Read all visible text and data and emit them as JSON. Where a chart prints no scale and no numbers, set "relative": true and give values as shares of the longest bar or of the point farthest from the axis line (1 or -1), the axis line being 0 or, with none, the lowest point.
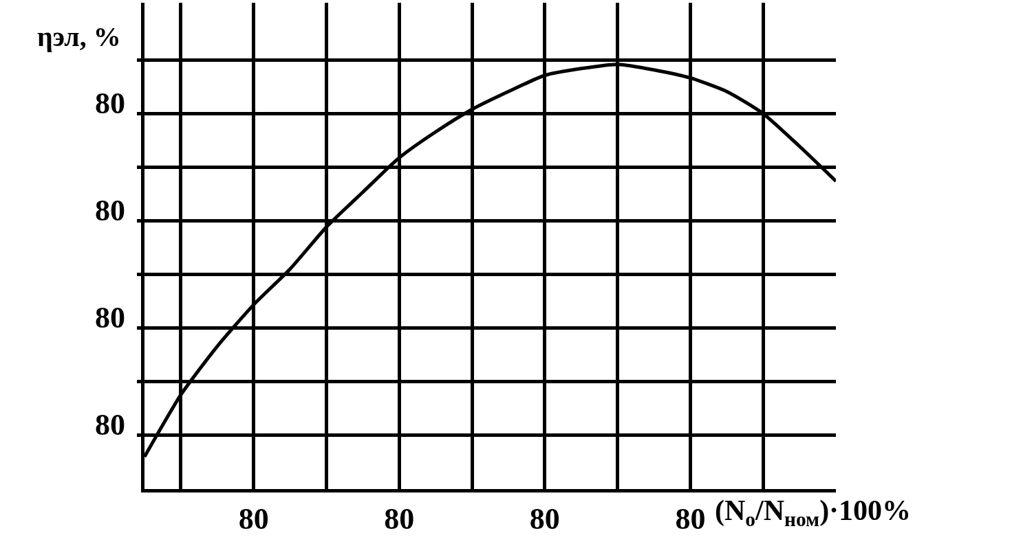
{
  "chart_data": {
    "type": "line",
    "relative": true,
    "xlabel": "(N$_{о}$/N$_{ном}$)·100%",
    "ylabel": "ηэл, %",
    "categories": [
      null,
      null,
      null,
      "80",
      null,
      null,
      null,
      "80",
      null,
      null,
      null,
      "80",
      null,
      null,
      null,
      "80",
      null,
      null,
      null,
      null
    ],
    "series": [
      {
        "color": "#000000",
        "values": [
          0.076,
          0.222,
          0.336,
          0.434,
          0.518,
          0.617,
          0.699,
          0.78,
          0.841,
          0.894,
          0.936,
          0.974,
          0.99,
          1,
          0.987,
          0.968,
          0.936,
          0.884,
          0.807,
          0.725
        ]
      }
    ],
    "annotations": [
      "80",
      "80",
      "80",
      "80"
    ],
    "grid": true,
    "line_style": "solid"
  }
}
